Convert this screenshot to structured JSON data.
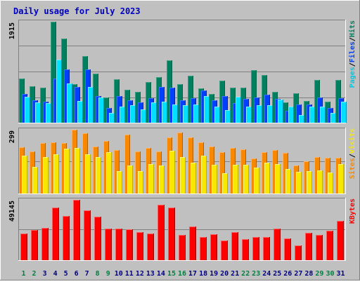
{
  "chart_data": {
    "type": "bar",
    "title": "Daily usage for July 2023",
    "categories": [
      "1",
      "2",
      "3",
      "4",
      "5",
      "6",
      "7",
      "8",
      "9",
      "10",
      "11",
      "12",
      "13",
      "14",
      "15",
      "16",
      "17",
      "18",
      "19",
      "20",
      "21",
      "22",
      "23",
      "24",
      "25",
      "26",
      "27",
      "28",
      "29",
      "30",
      "31"
    ],
    "weekend_days": [
      "1",
      "2",
      "8",
      "9",
      "15",
      "16",
      "22",
      "23",
      "29",
      "30"
    ],
    "colors": {
      "background": "#C0C0C0",
      "title": "#0000C0",
      "hits": "#008060",
      "files": "#0040FF",
      "pages": "#00E0FF",
      "visits": "#F8E800",
      "sites": "#F88800",
      "kbytes": "#FF0000",
      "day_label": "#000080",
      "weekend_label": "#008040"
    },
    "panels": [
      {
        "id": "hits",
        "ymax": 1915,
        "ymax_label": "1915",
        "legend": [
          {
            "text": "Pages",
            "color": "#00C8E0"
          },
          {
            "text": "/",
            "color": "#000000"
          },
          {
            "text": "Files",
            "color": "#0040FF"
          },
          {
            "text": "/",
            "color": "#000000"
          },
          {
            "text": "Hits",
            "color": "#008060"
          }
        ],
        "series": [
          {
            "name": "Hits",
            "color": "#008060",
            "values": [
              833,
              690,
              660,
              1915,
              1600,
              730,
              1260,
              930,
              480,
              820,
              620,
              580,
              770,
              860,
              1180,
              730,
              890,
              645,
              540,
              800,
              660,
              670,
              995,
              900,
              580,
              380,
              560,
              410,
              815,
              405,
              815
            ]
          },
          {
            "name": "Files",
            "color": "#0040FF",
            "values": [
              550,
              430,
              400,
              840,
              1010,
              680,
              1010,
              505,
              285,
              510,
              420,
              390,
              470,
              680,
              670,
              430,
              465,
              610,
              420,
              500,
              370,
              450,
              485,
              530,
              450,
              220,
              345,
              340,
              480,
              280,
              460
            ]
          },
          {
            "name": "Pages",
            "color": "#00E0FF",
            "values": [
              490,
              380,
              370,
              1200,
              740,
              410,
              680,
              480,
              180,
              310,
              330,
              250,
              390,
              400,
              350,
              330,
              350,
              500,
              300,
              240,
              495,
              300,
              330,
              330,
              440,
              300,
              150,
              300,
              300,
              190,
              400
            ]
          }
        ]
      },
      {
        "id": "visits",
        "ymax": 299,
        "ymax_label": "299",
        "legend": [
          {
            "text": "Sites",
            "color": "#F88800"
          },
          {
            "text": "/",
            "color": "#000000"
          },
          {
            "text": "Visits",
            "color": "#F8E800"
          }
        ],
        "series": [
          {
            "name": "Sites",
            "color": "#F88800",
            "values": [
              218,
              197,
              238,
              240,
              238,
              299,
              283,
              221,
              246,
              205,
              275,
              197,
              215,
              197,
              264,
              285,
              264,
              240,
              221,
              194,
              212,
              207,
              164,
              195,
              205,
              190,
              130,
              152,
              172,
              166,
              166
            ]
          },
          {
            "name": "Visits",
            "color": "#F8E800",
            "values": [
              177,
              126,
              172,
              184,
              210,
              212,
              184,
              172,
              195,
              104,
              130,
              106,
              138,
              130,
              202,
              170,
              146,
              176,
              135,
              95,
              135,
              135,
              121,
              146,
              137,
              116,
              103,
              104,
              107,
              100,
              137
            ]
          }
        ]
      },
      {
        "id": "kbytes",
        "ymax": 49145,
        "ymax_label": "49145",
        "legend": [
          {
            "text": "KBytes",
            "color": "#FF0000"
          }
        ],
        "series": [
          {
            "name": "KBytes",
            "color": "#FF0000",
            "values": [
              21500,
              24700,
              26400,
              43000,
              36000,
              49145,
              40500,
              35500,
              26000,
              26000,
              25000,
              23000,
              21600,
              45000,
              43000,
              20800,
              27200,
              18700,
              21000,
              16000,
              23000,
              17300,
              19000,
              19000,
              26000,
              17600,
              12000,
              22400,
              20600,
              24200,
              32100
            ]
          }
        ]
      }
    ]
  }
}
